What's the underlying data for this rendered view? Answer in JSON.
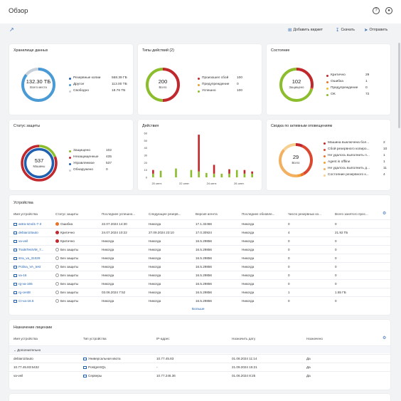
{
  "header": {
    "title": "Обзор",
    "help_icon": "question-circle-icon",
    "user_icon": "user-circle-icon"
  },
  "toolbar": {
    "add_widget": "Добавить виджет",
    "download": "Скачать",
    "send": "Отправить"
  },
  "storage": {
    "title": "Хранилище данных",
    "center_value": "132.30 ТБ",
    "center_label": "Всего места",
    "legend": [
      {
        "label": "Резервные копии",
        "value": "558.39 ГБ",
        "color": "#1f5fb0"
      },
      {
        "label": "Другое",
        "value": "113.00 ТБ",
        "color": "#4a9ad6"
      },
      {
        "label": "Свободно",
        "value": "18.76 ТБ",
        "color": "#c8d0da"
      }
    ]
  },
  "activity_types": {
    "title": "Типы действий (2)",
    "center_value": "200",
    "center_label": "Всего",
    "legend": [
      {
        "label": "Произошел сбой",
        "value": "100",
        "color": "#c0282d"
      },
      {
        "label": "Предупреждение",
        "value": "0",
        "color": "#f0a030"
      },
      {
        "label": "Успешно",
        "value": "100",
        "color": "#8cbd2d"
      }
    ]
  },
  "state": {
    "title": "Состояние",
    "center_value": "102",
    "center_label": "Защищено",
    "legend": [
      {
        "label": "Критично",
        "value": "29",
        "color": "#c0282d"
      },
      {
        "label": "Ошибка",
        "value": "1",
        "color": "#e8742a"
      },
      {
        "label": "Предупреждение",
        "value": "0",
        "color": "#f0c030"
      },
      {
        "label": "OK",
        "value": "72",
        "color": "#8cbd2d"
      }
    ]
  },
  "protection": {
    "title": "Статус защиты",
    "center_value": "537",
    "center_label": "Машины",
    "legend": [
      {
        "label": "Защищено",
        "value": "102",
        "color": "#8cbd2d"
      },
      {
        "label": "Незащищенные",
        "value": "435",
        "color": "#c0282d"
      },
      {
        "label": "Управляемое",
        "value": "537",
        "color": "#1f5fb0"
      },
      {
        "label": "Обнаружено",
        "value": "0",
        "color": "#c8d0da"
      }
    ]
  },
  "actions": {
    "title": "Действия"
  },
  "chart_data": {
    "type": "bar",
    "title": "Действия",
    "ylim": [
      0,
      60
    ],
    "yticks": [
      0,
      10,
      20,
      30,
      40,
      50,
      60
    ],
    "xticks": [
      "20 сент.",
      "22 сент.",
      "24 сент.",
      "26 сент."
    ],
    "series": [
      {
        "name": "Произошел сбой",
        "color": "#c0282d",
        "values": [
          5,
          0,
          0,
          0,
          0,
          0,
          50,
          0,
          12,
          0,
          6,
          0,
          5,
          3
        ]
      },
      {
        "name": "Успешно",
        "color": "#8cbd2d",
        "values": [
          5,
          9,
          0,
          12,
          0,
          10,
          8,
          6,
          5,
          5,
          5,
          10,
          5,
          5
        ]
      }
    ]
  },
  "alerts": {
    "title": "Сводка по активным оповещениям",
    "center_value": "29",
    "center_label": "Всего",
    "legend": [
      {
        "label": "Машина выключена бол...",
        "value": "2",
        "color": "#c0282d"
      },
      {
        "label": "Сбой резервного копиро...",
        "value": "10",
        "color": "#d9482f"
      },
      {
        "label": "Не удалось выполнить п...",
        "value": "1",
        "color": "#e8742a"
      },
      {
        "label": "Agent is offline",
        "value": "1",
        "color": "#f0a030"
      },
      {
        "label": "Не удалось выполнить д...",
        "value": "11",
        "color": "#f2b060"
      },
      {
        "label": "Состояние резервного к...",
        "value": "4",
        "color": "#f7d090"
      }
    ]
  },
  "devices": {
    "title": "Устройства",
    "more": "Больше",
    "columns": [
      "Имя устройства",
      "Статус защиты",
      "Последнее успешно...",
      "Следующее резерв...",
      "Версия агента",
      "Последнее обновле...",
      "Число резервных ко...",
      "Всего занятого прос..."
    ],
    "rows": [
      {
        "name": "astra-smol1-7-3",
        "status": "Ошибка",
        "status_color": "#e8742a",
        "last": "22.07.2024 14:30",
        "next": "Никогда",
        "agent": "17.1.32466",
        "updated": "Никогда",
        "count": "0",
        "size": "0"
      },
      {
        "name": "debian10auto",
        "status": "Критично",
        "status_color": "#c0282d",
        "last": "24.07.2024 10:22",
        "next": "27.09.2024 23:10",
        "agent": "17.0.30924",
        "updated": "Никогда",
        "count": "4",
        "size": "21.92 ГБ"
      },
      {
        "name": "va-veil",
        "status": "Критично",
        "status_color": "#c0282d",
        "last": "Никогда",
        "next": "Никогда",
        "agent": "16.5.29856",
        "updated": "Никогда",
        "count": "0",
        "size": "0"
      },
      {
        "name": "TraitsTestVM_7...",
        "status": "Без защиты",
        "status_color": "none",
        "last": "Никогда",
        "next": "Никогда",
        "agent": "16.5.29856",
        "updated": "Никогда",
        "count": "0",
        "size": "0"
      },
      {
        "name": "stra_va_31029",
        "status": "Без защиты",
        "status_color": "none",
        "last": "Никогда",
        "next": "Никогда",
        "agent": "16.5.29856",
        "updated": "Никогда",
        "count": "0",
        "size": "0"
      },
      {
        "name": "Polina_VA_test",
        "status": "Без защиты",
        "status_color": "none",
        "last": "Никогда",
        "next": "Никогда",
        "agent": "16.5.29856",
        "updated": "Никогда",
        "count": "0",
        "size": "0"
      },
      {
        "name": "va-16",
        "status": "Без защиты",
        "status_color": "none",
        "last": "Никогда",
        "next": "Никогда",
        "agent": "16.5.29856",
        "updated": "Никогда",
        "count": "0",
        "size": "0"
      },
      {
        "name": "rg-va-165",
        "status": "Без защиты",
        "status_color": "none",
        "last": "Никогда",
        "next": "Никогда",
        "agent": "16.5.29856",
        "updated": "Никогда",
        "count": "0",
        "size": "0"
      },
      {
        "name": "rg-cent8",
        "status": "Без защиты",
        "status_color": "none",
        "last": "03.06.2024 7:52",
        "next": "Никогда",
        "agent": "16.5.29856",
        "updated": "Никогда",
        "count": "1",
        "size": "1.55 ГБ"
      },
      {
        "name": "CI-va-16.5",
        "status": "Без защиты",
        "status_color": "none",
        "last": "Никогда",
        "next": "Никогда",
        "agent": "16.5.29856",
        "updated": "Никогда",
        "count": "0",
        "size": "0"
      }
    ]
  },
  "licenses": {
    "title": "Назначение лицензии",
    "group": "Дополнительно",
    "columns": [
      "Имя устройства",
      "Тип устройства",
      "IP-адрес",
      "Назначить дату",
      "Назначено"
    ],
    "rows": [
      {
        "name": "debian10auto",
        "type": "Универсальная квота",
        "ip": "10.77.45.83",
        "date": "01.08.2024 11:14",
        "assigned": "Да"
      },
      {
        "name": "10.77.45.83:5432",
        "type": "PostgreSQL",
        "ip": "-",
        "date": "21.09.2024 15:21",
        "assigned": "Да"
      },
      {
        "name": "va-veil",
        "type": "Серверы",
        "ip": "10.77.246.36",
        "date": "01.06.2024 8:25",
        "assigned": "Да"
      }
    ]
  }
}
